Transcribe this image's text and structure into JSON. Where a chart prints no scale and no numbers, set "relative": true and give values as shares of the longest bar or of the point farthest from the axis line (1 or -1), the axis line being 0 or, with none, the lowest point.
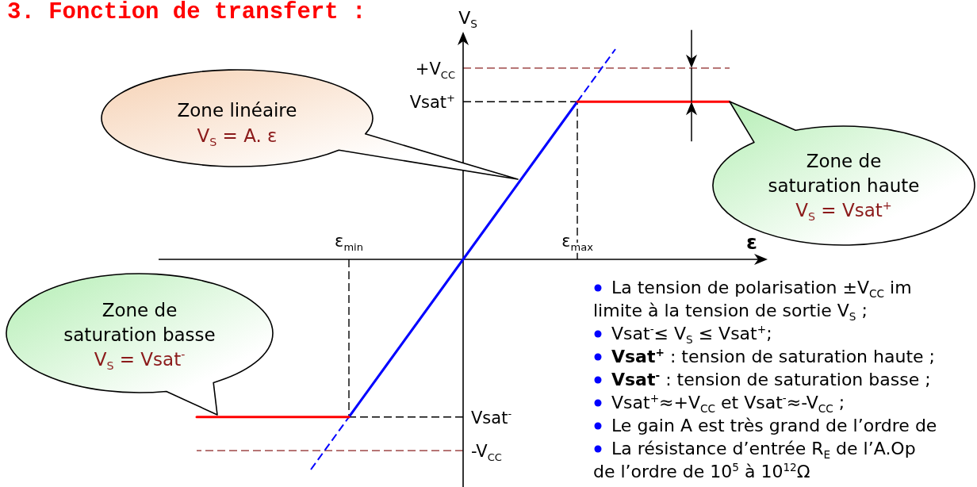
{
  "chart_data": {
    "type": "line",
    "title": "3. Fonction de transfert :",
    "xlabel": "ε",
    "ylabel": "V$_{S}$",
    "relative": true,
    "categories": [
      null,
      null,
      null,
      null,
      "ε$_{min}$",
      null,
      null,
      null,
      null,
      null,
      "ε$_{max}$",
      null,
      null,
      null,
      null
    ],
    "series": [
      {
        "color": "#0000ff",
        "values": [
          null,
          null,
          null,
          null,
          -0.75,
          -0.5,
          -0.25,
          0,
          0.25,
          0.5,
          0.75,
          null,
          null,
          null,
          null
        ]
      },
      {
        "color": "#0000ff",
        "line_style": "dashed",
        "values": [
          null,
          null,
          null,
          -1,
          -0.75,
          null,
          null,
          null,
          null,
          null,
          null,
          null,
          null,
          null,
          null
        ]
      },
      {
        "color": "#0000ff",
        "line_style": "dashed",
        "values": [
          null,
          null,
          null,
          null,
          null,
          null,
          null,
          null,
          null,
          null,
          0.75,
          1,
          null,
          null,
          null
        ]
      },
      {
        "color": "#ff0000",
        "values": [
          -0.75,
          -0.75,
          -0.75,
          -0.75,
          -0.75,
          null,
          null,
          null,
          null,
          null,
          0.75,
          0.75,
          0.75,
          0.75,
          0.75
        ]
      }
    ],
    "ref_lines": [
      {
        "axis": "y",
        "value": 0.91,
        "label": "+V$_{CC}$",
        "color": "#8b2323",
        "line_style": "dashed"
      },
      {
        "axis": "y",
        "value": 0.75,
        "label": "Vsat$^{+}$",
        "color": "#000000",
        "line_style": "dashed"
      },
      {
        "axis": "y",
        "value": -0.75,
        "label": "Vsat$^{-}$",
        "color": "#000000",
        "line_style": "dashed"
      },
      {
        "axis": "y",
        "value": -0.91,
        "label": "-V$_{CC}$",
        "color": "#8b2323",
        "line_style": "dashed"
      },
      {
        "axis": "x",
        "value": "ε$_{min}$",
        "color": "#000000",
        "line_style": "dashed"
      },
      {
        "axis": "x",
        "value": "ε$_{max}$",
        "color": "#000000",
        "line_style": "dashed"
      }
    ],
    "annotations": [
      "Zone linéaire\nV$_{S}$ = A. ε",
      "Zone de\nsaturation haute\nV$_{S}$ = Vsat$^{+}$",
      "Zone de\nsaturation basse\nV$_{S}$ = Vsat$^{-}$",
      "La tension de polarisation ±V$_{CC}$ im\nlimite à la tension de sortie V$_{S}$ ;",
      "Vsat$^{-}$≤ V$_{S}$ ≤ Vsat$^{+}$;",
      "Vsat$^{+}$ : tension de saturation haute ;",
      "Vsat$^{-}$ : tension de saturation basse ;",
      "Vsat$^{+}$≈+V$_{CC}$ et Vsat$^{-}$≈-V$_{CC}$ ;",
      "Le gain A est très grand de l’ordre de",
      "La résistance d’entrée R$_{E}$ de l’A.Op\nde l’ordre de 10$^{5}$ à 10$^{12}$Ω"
    ]
  }
}
